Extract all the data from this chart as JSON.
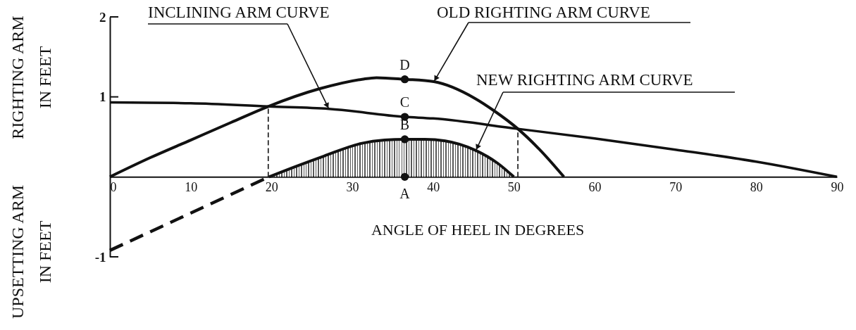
{
  "chart_data": {
    "type": "line",
    "xlabel": "ANGLE OF HEEL IN DEGREES",
    "ylabel": "RIGHTING ARM\nIN FEET",
    "annotations": [
      "UPSETTING ARM\nIN FEET"
    ],
    "xlim": [
      0,
      90
    ],
    "xticks": [
      0,
      10,
      20,
      30,
      40,
      50,
      60,
      70,
      80,
      90
    ],
    "ylim": [
      -1,
      2
    ],
    "yticks": [
      -1,
      1,
      2
    ],
    "series": [
      {
        "name": "INCLINING ARM CURVE",
        "color": "#111111",
        "x": [
          0,
          10,
          19.6,
          27.1,
          36.5,
          40,
          50.5,
          60,
          70,
          80,
          90
        ],
        "values": [
          0.93,
          0.92,
          0.88,
          0.85,
          0.75,
          0.73,
          0.6,
          0.48,
          0.34,
          0.19,
          0
        ]
      },
      {
        "name": "OLD RIGHTING ARM CURVE",
        "color": "#111111",
        "x": [
          0,
          5,
          10,
          15,
          19.6,
          25.9,
          31.2,
          33,
          36.5,
          40.1,
          45.2,
          47.5,
          50.5,
          53.3,
          56.2
        ],
        "values": [
          0,
          0.24,
          0.46,
          0.68,
          0.88,
          1.1,
          1.22,
          1.24,
          1.22,
          1.19,
          0.98,
          0.83,
          0.6,
          0.33,
          0
        ]
      },
      {
        "name": "NEW RIGHTING ARM CURVE",
        "type": "area",
        "color": "#111111",
        "x": [
          19.7,
          23,
          26.5,
          31.2,
          34,
          36.5,
          39,
          41.5,
          45.3,
          48,
          50
        ],
        "values": [
          0,
          0.13,
          0.26,
          0.42,
          0.46,
          0.47,
          0.47,
          0.45,
          0.33,
          0.17,
          0
        ]
      },
      {
        "color": "#111111",
        "line_style": "dashed",
        "x": [
          0,
          19.7
        ],
        "values": [
          -0.92,
          0
        ]
      },
      {
        "color": "#111111",
        "line_style": "dashed",
        "x": [
          19.6,
          19.6
        ],
        "values": [
          0,
          0.88
        ]
      },
      {
        "color": "#111111",
        "line_style": "dashed",
        "x": [
          50.5,
          50.5
        ],
        "values": [
          0,
          0.6
        ]
      },
      {
        "type": "scatter",
        "color": "#111111",
        "marker": "circle",
        "x": [
          36.5,
          36.5,
          36.5,
          36.5
        ],
        "values": [
          0,
          0.47,
          0.75,
          1.22
        ],
        "value_labels": [
          "A",
          "B",
          "C",
          "D"
        ]
      }
    ]
  }
}
